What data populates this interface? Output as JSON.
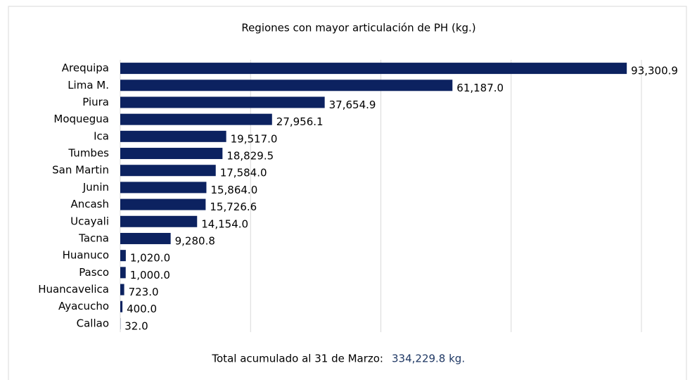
{
  "chart_data": {
    "type": "bar",
    "orientation": "horizontal",
    "title": "Regiones con mayor articulación de PH (kg.)",
    "categories": [
      "Arequipa",
      "Lima M.",
      "Piura",
      "Moquegua",
      "Ica",
      "Tumbes",
      "San Martin",
      "Junin",
      "Ancash",
      "Ucayali",
      "Tacna",
      "Huanuco",
      "Pasco",
      "Huancavelica",
      "Ayacucho",
      "Callao"
    ],
    "values": [
      93300.9,
      61187.0,
      37654.9,
      27956.1,
      19517.0,
      18829.5,
      17584.0,
      15864.0,
      15726.6,
      14154.0,
      9280.8,
      1020.0,
      1000.0,
      723.0,
      400.0,
      32.0
    ],
    "value_labels": [
      "93,300.9",
      "61,187.0",
      "37,654.9",
      "27,956.1",
      "19,517.0",
      "18,829.5",
      "17,584.0",
      "15,864.0",
      "15,726.6",
      "14,154.0",
      "9,280.8",
      "1,020.0",
      "1,000.0",
      "723.0",
      "400.0",
      "32.0"
    ],
    "color": "#0c2260",
    "xlim": [
      0,
      96000
    ],
    "xticks": [
      0,
      24000,
      48000,
      72000,
      96000
    ],
    "grid": true,
    "footer": {
      "label": "Total acumulado al 31 de Marzo:",
      "total": "334,229.8 kg."
    }
  }
}
